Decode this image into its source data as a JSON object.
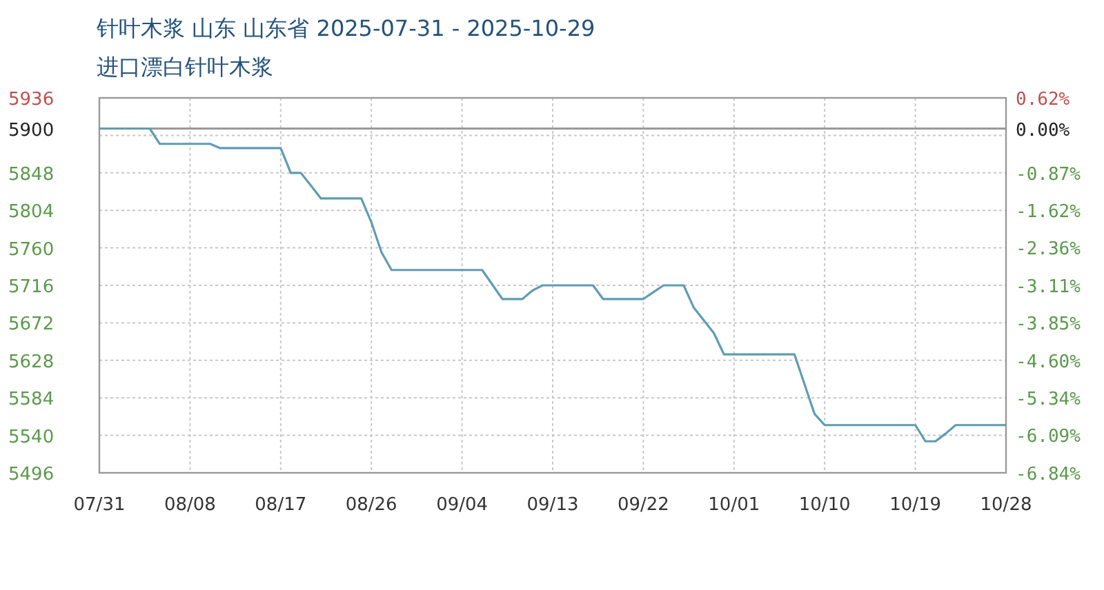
{
  "chart_data": {
    "type": "line",
    "title": "针叶木浆 山东 山东省 2025-07-31 - 2025-10-29",
    "subtitle": "进口漂白针叶木浆",
    "categories": [
      "07/31",
      null,
      null,
      null,
      null,
      null,
      null,
      null,
      null,
      "08/08",
      null,
      null,
      null,
      null,
      null,
      null,
      null,
      null,
      "08/17",
      null,
      null,
      null,
      null,
      null,
      null,
      null,
      null,
      "08/26",
      null,
      null,
      null,
      null,
      null,
      null,
      null,
      null,
      "09/04",
      null,
      null,
      null,
      null,
      null,
      null,
      null,
      null,
      "09/13",
      null,
      null,
      null,
      null,
      null,
      null,
      null,
      null,
      "09/22",
      null,
      null,
      null,
      null,
      null,
      null,
      null,
      null,
      "10/01",
      null,
      null,
      null,
      null,
      null,
      null,
      null,
      null,
      "10/10",
      null,
      null,
      null,
      null,
      null,
      null,
      null,
      null,
      "10/19",
      null,
      null,
      null,
      null,
      null,
      null,
      null,
      null,
      "10/28"
    ],
    "series": [
      {
        "color": "#5e9cb4",
        "values": [
          5900,
          5900,
          5900,
          5900,
          5900,
          5900,
          5882,
          5882,
          5882,
          5882,
          5882,
          5882,
          5877,
          5877,
          5877,
          5877,
          5877,
          5877,
          5877,
          5848,
          5848,
          5833,
          5818,
          5818,
          5818,
          5818,
          5818,
          5790,
          5755,
          5734,
          5734,
          5734,
          5734,
          5734,
          5734,
          5734,
          5734,
          5734,
          5734,
          5717,
          5700,
          5700,
          5700,
          5710,
          5716,
          5716,
          5716,
          5716,
          5716,
          5716,
          5700,
          5700,
          5700,
          5700,
          5700,
          5708,
          5716,
          5716,
          5716,
          5690,
          5675,
          5660,
          5635,
          5635,
          5635,
          5635,
          5635,
          5635,
          5635,
          5635,
          5600,
          5565,
          5552,
          5552,
          5552,
          5552,
          5552,
          5552,
          5552,
          5552,
          5552,
          5552,
          5533,
          5533,
          5542,
          5552,
          5552,
          5552,
          5552,
          5552,
          5552
        ]
      }
    ],
    "ylim": [
      5496,
      5936
    ],
    "yticks": [
      5936,
      5900,
      {
        "value": 5892,
        "label": null
      },
      5848,
      5804,
      5760,
      5716,
      5672,
      5628,
      5584,
      5540,
      5496
    ],
    "y2lim": [
      -6.84,
      0.62
    ],
    "y2ticks": [
      {
        "value": 0.62,
        "label": "0.62%"
      },
      {
        "value": 0,
        "label": "0.00%"
      },
      {
        "value": -0.87,
        "label": "-0.87%"
      },
      {
        "value": -1.62,
        "label": "-1.62%"
      },
      {
        "value": -2.36,
        "label": "-2.36%"
      },
      {
        "value": -3.11,
        "label": "-3.11%"
      },
      {
        "value": -3.85,
        "label": "-3.85%"
      },
      {
        "value": -4.6,
        "label": "-4.60%"
      },
      {
        "value": -5.34,
        "label": "-5.34%"
      },
      {
        "value": -6.09,
        "label": "-6.09%"
      },
      {
        "value": -6.84,
        "label": "-6.84%"
      }
    ],
    "grid": true,
    "ref_lines": [
      {
        "axis": "y",
        "value": 5900
      }
    ]
  }
}
